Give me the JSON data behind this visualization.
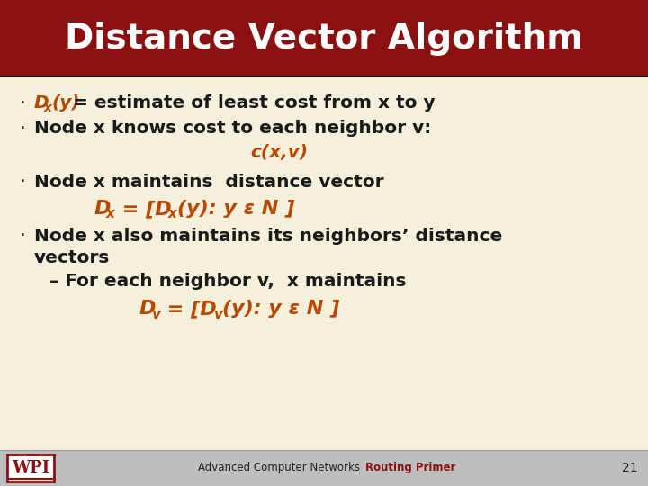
{
  "title": "Distance Vector Algorithm",
  "title_bg_color": "#8B1010",
  "title_text_color": "#FFFFFF",
  "slide_bg_color": "#F5F0DC",
  "footer_bg_color": "#BEBEBE",
  "orange_color": "#B84800",
  "dark_text_color": "#1A1A1A",
  "footer_text1": "Advanced Computer Networks",
  "footer_text2": "Routing Primer",
  "footer_text2_color": "#8B1010",
  "footer_number": "21",
  "wpi_red": "#8B1010",
  "title_bar_height": 85,
  "footer_bar_height": 40
}
